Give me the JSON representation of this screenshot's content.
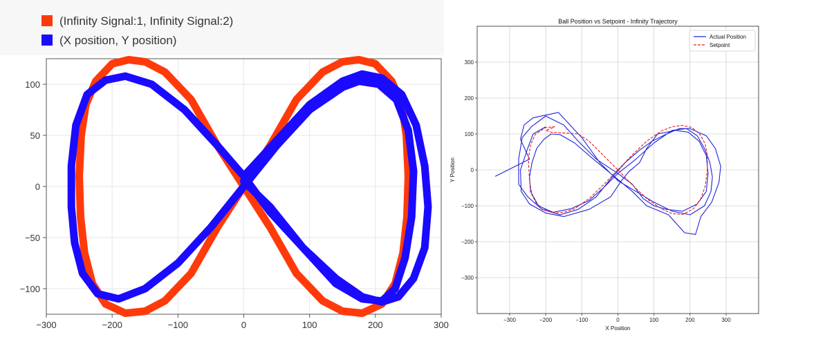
{
  "chart_data": [
    {
      "type": "line",
      "legend": [
        "(Infinity Signal:1, Infinity Signal:2)",
        "(X position, Y position)"
      ],
      "legend_position": "top-left",
      "xlim": [
        -300,
        300
      ],
      "ylim": [
        -125,
        125
      ],
      "x_ticks": [
        -300,
        -200,
        -100,
        0,
        100,
        200,
        300
      ],
      "y_ticks": [
        -100,
        -50,
        0,
        50,
        100
      ],
      "grid": true,
      "series": [
        {
          "name": "(Infinity Signal:1, Infinity Signal:2)",
          "color": "#ff3a0a",
          "points": [
            [
              0,
              0
            ],
            [
              40,
              40
            ],
            [
              80,
              85
            ],
            [
              120,
              112
            ],
            [
              150,
              122
            ],
            [
              175,
              124
            ],
            [
              200,
              120
            ],
            [
              225,
              103
            ],
            [
              240,
              80
            ],
            [
              247,
              50
            ],
            [
              250,
              10
            ],
            [
              248,
              -30
            ],
            [
              242,
              -65
            ],
            [
              230,
              -95
            ],
            [
              210,
              -115
            ],
            [
              180,
              -124
            ],
            [
              150,
              -122
            ],
            [
              120,
              -112
            ],
            [
              80,
              -85
            ],
            [
              40,
              -40
            ],
            [
              0,
              0
            ],
            [
              -40,
              40
            ],
            [
              -80,
              85
            ],
            [
              -120,
              112
            ],
            [
              -150,
              122
            ],
            [
              -175,
              124
            ],
            [
              -200,
              120
            ],
            [
              -225,
              103
            ],
            [
              -240,
              80
            ],
            [
              -247,
              50
            ],
            [
              -250,
              10
            ],
            [
              -248,
              -30
            ],
            [
              -242,
              -65
            ],
            [
              -230,
              -95
            ],
            [
              -210,
              -115
            ],
            [
              -180,
              -124
            ],
            [
              -150,
              -122
            ],
            [
              -120,
              -112
            ],
            [
              -80,
              -85
            ],
            [
              -40,
              -40
            ],
            [
              0,
              0
            ]
          ]
        },
        {
          "name": "(X position, Y position)",
          "color": "#1a0aff",
          "points": [
            [
              0,
              10
            ],
            [
              50,
              45
            ],
            [
              100,
              80
            ],
            [
              150,
              103
            ],
            [
              180,
              110
            ],
            [
              210,
              106
            ],
            [
              240,
              90
            ],
            [
              262,
              60
            ],
            [
              275,
              20
            ],
            [
              280,
              -20
            ],
            [
              275,
              -60
            ],
            [
              258,
              -90
            ],
            [
              235,
              -108
            ],
            [
              210,
              -113
            ],
            [
              180,
              -108
            ],
            [
              140,
              -90
            ],
            [
              90,
              -60
            ],
            [
              40,
              -25
            ],
            [
              0,
              10
            ],
            [
              -40,
              40
            ],
            [
              -90,
              75
            ],
            [
              -140,
              100
            ],
            [
              -180,
              108
            ],
            [
              -210,
              104
            ],
            [
              -238,
              90
            ],
            [
              -255,
              60
            ],
            [
              -262,
              20
            ],
            [
              -262,
              -20
            ],
            [
              -257,
              -55
            ],
            [
              -245,
              -85
            ],
            [
              -222,
              -105
            ],
            [
              -190,
              -110
            ],
            [
              -150,
              -100
            ],
            [
              -100,
              -75
            ],
            [
              -50,
              -40
            ],
            [
              0,
              0
            ],
            [
              50,
              40
            ],
            [
              100,
              75
            ],
            [
              150,
              97
            ],
            [
              175,
              103
            ],
            [
              205,
              100
            ],
            [
              232,
              85
            ],
            [
              250,
              55
            ],
            [
              258,
              15
            ],
            [
              255,
              -30
            ],
            [
              245,
              -70
            ],
            [
              230,
              -100
            ],
            [
              210,
              -112
            ],
            [
              180,
              -110
            ],
            [
              140,
              -95
            ],
            [
              90,
              -60
            ],
            [
              40,
              -20
            ],
            [
              0,
              5
            ]
          ]
        }
      ]
    },
    {
      "type": "line",
      "title": "Ball Position vs Setpoint - Infinity Trajectory",
      "xlabel": "X Position",
      "ylabel": "Y Position",
      "xlim": [
        -390,
        390
      ],
      "ylim": [
        -400,
        400
      ],
      "x_ticks": [
        -300,
        -200,
        -100,
        0,
        100,
        200,
        300
      ],
      "y_ticks": [
        -300,
        -200,
        -100,
        0,
        100,
        200,
        300
      ],
      "grid": true,
      "legend": [
        "Actual Position",
        "Setpoint"
      ],
      "legend_position": "top-right",
      "series": [
        {
          "name": "Actual Position",
          "color": "#1f24d8",
          "style": "solid",
          "points": [
            [
              -340,
              -18
            ],
            [
              -245,
              30
            ],
            [
              -270,
              85
            ],
            [
              -260,
              125
            ],
            [
              -235,
              145
            ],
            [
              -165,
              160
            ],
            [
              -100,
              90
            ],
            [
              -50,
              20
            ],
            [
              0,
              -30
            ],
            [
              50,
              -60
            ],
            [
              100,
              -90
            ],
            [
              150,
              -115
            ],
            [
              200,
              -125
            ],
            [
              240,
              -100
            ],
            [
              258,
              -60
            ],
            [
              262,
              -20
            ],
            [
              255,
              20
            ],
            [
              240,
              60
            ],
            [
              220,
              95
            ],
            [
              190,
              115
            ],
            [
              150,
              110
            ],
            [
              100,
              75
            ],
            [
              50,
              30
            ],
            [
              0,
              -10
            ],
            [
              -40,
              -50
            ],
            [
              -80,
              -85
            ],
            [
              -130,
              -108
            ],
            [
              -180,
              -118
            ],
            [
              -220,
              -100
            ],
            [
              -242,
              -60
            ],
            [
              -245,
              -20
            ],
            [
              -238,
              20
            ],
            [
              -225,
              60
            ],
            [
              -205,
              85
            ],
            [
              -185,
              100
            ],
            [
              -160,
              98
            ],
            [
              -120,
              75
            ],
            [
              -80,
              40
            ],
            [
              -20,
              -10
            ],
            [
              40,
              -60
            ],
            [
              80,
              -100
            ],
            [
              140,
              -125
            ],
            [
              185,
              -175
            ],
            [
              215,
              -180
            ],
            [
              230,
              -130
            ],
            [
              260,
              -90
            ],
            [
              280,
              -35
            ],
            [
              285,
              10
            ],
            [
              270,
              60
            ],
            [
              245,
              95
            ],
            [
              200,
              115
            ],
            [
              170,
              115
            ],
            [
              135,
              100
            ],
            [
              95,
              80
            ],
            [
              60,
              55
            ],
            [
              20,
              20
            ],
            [
              -20,
              -25
            ],
            [
              -60,
              -75
            ],
            [
              -110,
              -110
            ],
            [
              -160,
              -125
            ],
            [
              -210,
              -110
            ],
            [
              -250,
              -75
            ],
            [
              -275,
              -40
            ],
            [
              -275,
              30
            ],
            [
              -265,
              90
            ],
            [
              -240,
              120
            ],
            [
              -200,
              150
            ],
            [
              -150,
              125
            ],
            [
              -110,
              80
            ],
            [
              -60,
              30
            ],
            [
              0,
              -10
            ],
            [
              40,
              -40
            ],
            [
              70,
              -80
            ],
            [
              100,
              -100
            ],
            [
              135,
              -110
            ],
            [
              180,
              -115
            ],
            [
              220,
              -95
            ],
            [
              245,
              -60
            ],
            [
              250,
              -10
            ],
            [
              245,
              40
            ],
            [
              225,
              80
            ],
            [
              195,
              105
            ],
            [
              160,
              110
            ],
            [
              110,
              100
            ],
            [
              80,
              60
            ],
            [
              60,
              20
            ],
            [
              30,
              -5
            ],
            [
              10,
              -30
            ],
            [
              -20,
              -75
            ],
            [
              -80,
              -110
            ],
            [
              -150,
              -130
            ],
            [
              -200,
              -120
            ],
            [
              -245,
              -95
            ],
            [
              -268,
              -60
            ],
            [
              -270,
              0
            ],
            [
              -250,
              60
            ],
            [
              -235,
              100
            ],
            [
              -200,
              120
            ]
          ]
        },
        {
          "name": "Setpoint",
          "color": "#e41a1c",
          "style": "dashed",
          "points": [
            [
              0,
              0
            ],
            [
              40,
              42
            ],
            [
              80,
              80
            ],
            [
              120,
              108
            ],
            [
              150,
              120
            ],
            [
              178,
              124
            ],
            [
              205,
              118
            ],
            [
              228,
              98
            ],
            [
              242,
              72
            ],
            [
              248,
              40
            ],
            [
              248,
              0
            ],
            [
              242,
              -45
            ],
            [
              230,
              -80
            ],
            [
              210,
              -108
            ],
            [
              180,
              -124
            ],
            [
              150,
              -122
            ],
            [
              120,
              -108
            ],
            [
              80,
              -80
            ],
            [
              40,
              -42
            ],
            [
              0,
              0
            ],
            [
              -40,
              40
            ],
            [
              -80,
              80
            ],
            [
              -110,
              100
            ],
            [
              -150,
              103
            ],
            [
              -185,
              105
            ],
            [
              -200,
              110
            ],
            [
              -175,
              120
            ],
            [
              -200,
              118
            ],
            [
              -228,
              100
            ],
            [
              -242,
              70
            ],
            [
              -248,
              30
            ],
            [
              -245,
              -30
            ],
            [
              -238,
              -70
            ],
            [
              -225,
              -95
            ],
            [
              -200,
              -112
            ],
            [
              -175,
              -120
            ],
            [
              -150,
              -118
            ],
            [
              -120,
              -108
            ],
            [
              -80,
              -80
            ],
            [
              -40,
              -42
            ],
            [
              0,
              0
            ]
          ]
        }
      ]
    }
  ]
}
